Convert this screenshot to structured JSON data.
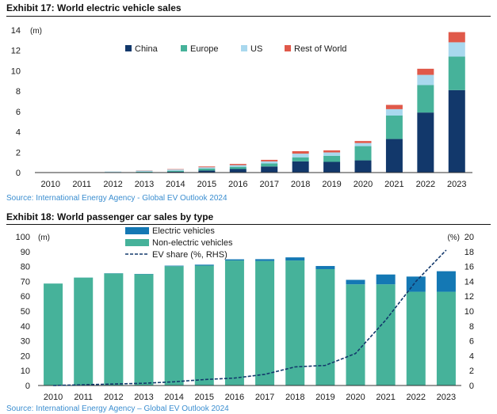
{
  "exhibit17": {
    "title": "Exhibit 17: World electric vehicle sales",
    "source": "Source: International Energy Agency - Global EV Outlook 2024"
  },
  "exhibit18": {
    "title": "Exhibit 18: World passenger car sales by type",
    "source": "Source: International Energy Agency – Global EV Outlook 2024"
  },
  "chart_data": [
    {
      "type": "bar",
      "stacked": true,
      "title": "Exhibit 17: World electric vehicle sales",
      "ylabel": "(m)",
      "ylim": [
        0,
        14
      ],
      "yticks": [
        0,
        2,
        4,
        6,
        8,
        10,
        12,
        14
      ],
      "grid": false,
      "legend_position": "top",
      "categories": [
        "2010",
        "2011",
        "2012",
        "2013",
        "2014",
        "2015",
        "2016",
        "2017",
        "2018",
        "2019",
        "2020",
        "2021",
        "2022",
        "2023"
      ],
      "series": [
        {
          "name": "China",
          "color": "#12386b",
          "values": [
            0.01,
            0.01,
            0.02,
            0.02,
            0.08,
            0.2,
            0.35,
            0.6,
            1.1,
            1.05,
            1.2,
            3.3,
            5.9,
            8.1
          ]
        },
        {
          "name": "Europe",
          "color": "#46b29a",
          "values": [
            0.0,
            0.01,
            0.03,
            0.07,
            0.1,
            0.2,
            0.22,
            0.3,
            0.4,
            0.6,
            1.4,
            2.3,
            2.7,
            3.3
          ]
        },
        {
          "name": "US",
          "color": "#a9d8ee",
          "values": [
            0.0,
            0.02,
            0.05,
            0.1,
            0.12,
            0.12,
            0.16,
            0.2,
            0.36,
            0.33,
            0.3,
            0.63,
            1.0,
            1.4
          ]
        },
        {
          "name": "Rest of World",
          "color": "#e0594a",
          "values": [
            0.0,
            0.0,
            0.0,
            0.02,
            0.04,
            0.08,
            0.12,
            0.15,
            0.24,
            0.2,
            0.2,
            0.42,
            0.6,
            1.0
          ]
        }
      ]
    },
    {
      "type": "bar",
      "stacked": true,
      "title": "Exhibit 18: World passenger car sales by type",
      "ylabel": "(m)",
      "ylabel_right": "(%)",
      "ylim": [
        0,
        100
      ],
      "ylim_right": [
        0,
        20
      ],
      "yticks": [
        0,
        10,
        20,
        30,
        40,
        50,
        60,
        70,
        80,
        90,
        100
      ],
      "yticks_right": [
        0,
        2,
        4,
        6,
        8,
        10,
        12,
        14,
        16,
        18,
        20
      ],
      "grid": false,
      "legend_position": "top",
      "categories": [
        "2010",
        "2011",
        "2012",
        "2013",
        "2014",
        "2015",
        "2016",
        "2017",
        "2018",
        "2019",
        "2020",
        "2021",
        "2022",
        "2023"
      ],
      "series": [
        {
          "name": "Non-electric vehicles",
          "color": "#46b29a",
          "values": [
            68.5,
            72.5,
            75.3,
            74.8,
            80.2,
            80.6,
            84.0,
            83.7,
            84.0,
            78.2,
            68.0,
            68.0,
            63.0,
            63.0
          ]
        },
        {
          "name": "Electric vehicles",
          "color": "#1478b4",
          "values": [
            0.02,
            0.05,
            0.12,
            0.2,
            0.34,
            0.6,
            0.8,
            1.2,
            2.1,
            2.1,
            3.0,
            6.6,
            10.2,
            13.8
          ]
        }
      ],
      "line_series": [
        {
          "name": "EV share (%, RHS)",
          "axis": "right",
          "style": "dashed",
          "color": "#12386b",
          "values": [
            0.0,
            0.1,
            0.2,
            0.3,
            0.5,
            0.8,
            1.0,
            1.5,
            2.5,
            2.7,
            4.3,
            8.8,
            14.0,
            18.2
          ]
        }
      ]
    }
  ]
}
